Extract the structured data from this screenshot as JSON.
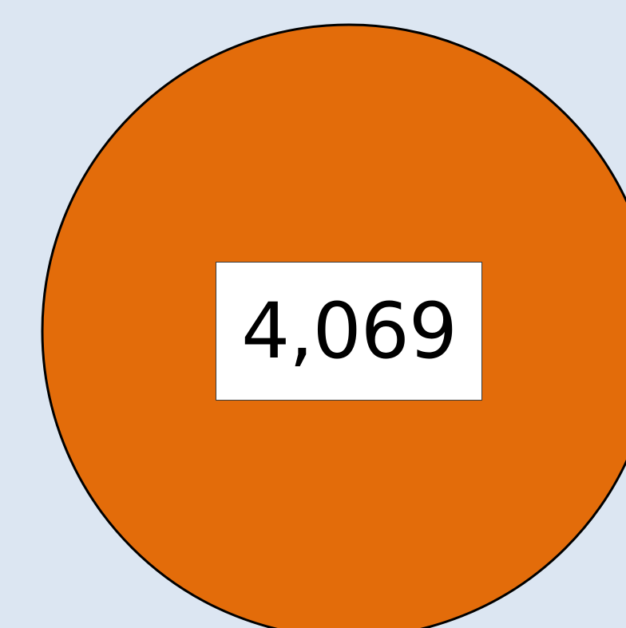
{
  "chart_data": {
    "type": "pie",
    "slices": [
      {
        "value": 4069,
        "label": "4,069",
        "color": "#e36c0a"
      }
    ],
    "title": "",
    "legend": "none"
  },
  "colors": {
    "background": "#dce6f2",
    "slice_fill": "#e36c0a",
    "slice_outline": "#000000",
    "label_background": "#ffffff"
  }
}
